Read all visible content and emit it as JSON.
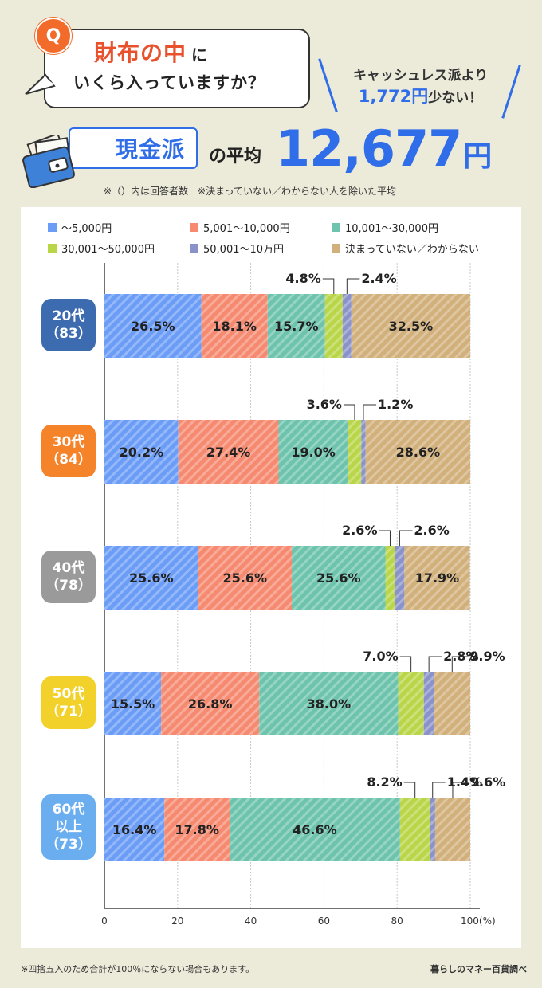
{
  "header": {
    "q_mark": "Q",
    "q_title": "財布の中",
    "q_title_suffix": "に",
    "q_line2": "いくら入っていますか？",
    "compare_line1": "キャッシュレス派より",
    "compare_value": "1,772円",
    "compare_suffix": "少ない！",
    "cash_label": "現金派",
    "avg_label": "の平均",
    "avg_value": "12,677",
    "avg_unit": "円",
    "sub_note": "※（）内は回答者数　※決まっていない／わからない人を除いた平均"
  },
  "footer": {
    "note": "※四捨五入のため合計が100％にならない場合もあります。",
    "source": "暮らしのマネー百貨調べ"
  },
  "colors": {
    "c1": "#6b9cf6",
    "c2": "#f58a70",
    "c3": "#6ec3ad",
    "c4": "#b9d648",
    "c5": "#8a93c9",
    "c6": "#d1b07c",
    "b20": "#3d6bb0",
    "b30": "#f5832a",
    "b40": "#9a9a9a",
    "b50": "#f2d12a",
    "b60": "#6aaef0"
  },
  "chart_data": {
    "type": "bar",
    "orientation": "horizontal-stacked",
    "xlabel": "(%)",
    "xlim": [
      0,
      100
    ],
    "ticks": [
      "0",
      "20",
      "40",
      "60",
      "80",
      "100"
    ],
    "legend": [
      "～5,000円",
      "5,001～10,000円",
      "10,001～30,000円",
      "30,001～50,000円",
      "50,001～10万円",
      "決まっていない／わからない"
    ],
    "categories": [
      {
        "age": "20代",
        "n": "（83）",
        "badge": "b20"
      },
      {
        "age": "30代",
        "n": "（84）",
        "badge": "b30"
      },
      {
        "age": "40代",
        "n": "（78）",
        "badge": "b40"
      },
      {
        "age": "50代",
        "n": "（71）",
        "badge": "b50"
      },
      {
        "age": "60代以上",
        "age_l1": "60代",
        "age_l2": "以上",
        "n": "（73）",
        "badge": "b60"
      }
    ],
    "series": [
      {
        "name": "～5,000円",
        "color": "c1",
        "values": [
          26.5,
          20.2,
          25.6,
          15.5,
          16.4
        ]
      },
      {
        "name": "5,001～10,000円",
        "color": "c2",
        "values": [
          18.1,
          27.4,
          25.6,
          26.8,
          17.8
        ]
      },
      {
        "name": "10,001～30,000円",
        "color": "c3",
        "values": [
          15.7,
          19.0,
          25.6,
          38.0,
          46.6
        ]
      },
      {
        "name": "30,001～50,000円",
        "color": "c4",
        "values": [
          4.8,
          3.6,
          2.6,
          7.0,
          8.2
        ]
      },
      {
        "name": "50,001～10万円",
        "color": "c5",
        "values": [
          2.4,
          1.2,
          2.6,
          2.8,
          1.4
        ]
      },
      {
        "name": "決まっていない／わからない",
        "color": "c6",
        "values": [
          32.5,
          28.6,
          17.9,
          9.9,
          9.6
        ]
      }
    ],
    "labels": [
      [
        "26.5%",
        "18.1%",
        "15.7%",
        "4.8%",
        "2.4%",
        "32.5%"
      ],
      [
        "20.2%",
        "27.4%",
        "19.0%",
        "3.6%",
        "1.2%",
        "28.6%"
      ],
      [
        "25.6%",
        "25.6%",
        "25.6%",
        "2.6%",
        "2.6%",
        "17.9%"
      ],
      [
        "15.5%",
        "26.8%",
        "38.0%",
        "7.0%",
        "2.8%",
        "9.9%"
      ],
      [
        "16.4%",
        "17.8%",
        "46.6%",
        "8.2%",
        "1.4%",
        "9.6%"
      ]
    ]
  }
}
